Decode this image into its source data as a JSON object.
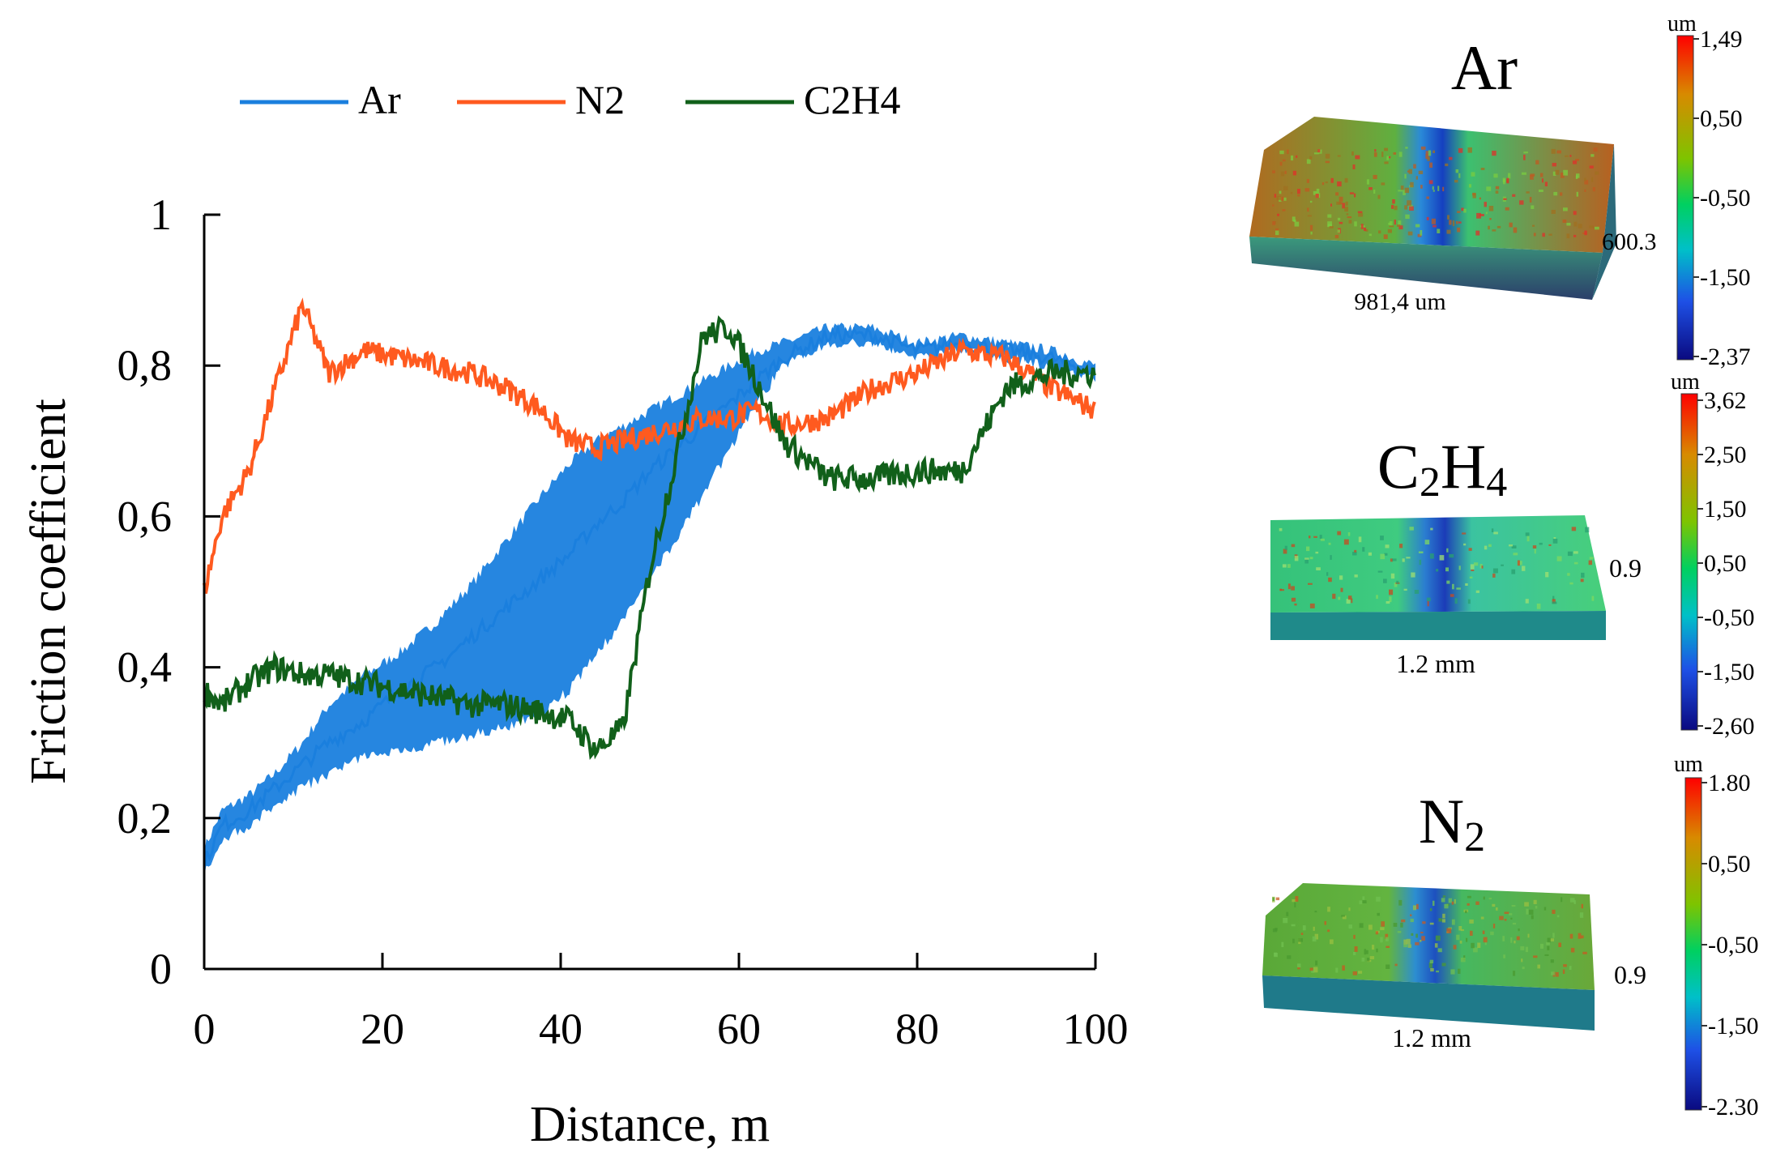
{
  "chart_data": {
    "type": "line",
    "xlabel": "Distance, m",
    "ylabel": "Friction coefficient",
    "xlim": [
      0,
      100
    ],
    "ylim": [
      0,
      1
    ],
    "grid": false,
    "legend_position": "top",
    "x_ticks": [
      "0",
      "20",
      "40",
      "60",
      "80",
      "100"
    ],
    "y_ticks": [
      "0",
      "0,2",
      "0,4",
      "0,6",
      "0,8",
      "1"
    ],
    "x": [
      0,
      2,
      5,
      8,
      11,
      14,
      18,
      22,
      26,
      30,
      34,
      38,
      41,
      44,
      47,
      50,
      53,
      56,
      59,
      62,
      65,
      70,
      75,
      80,
      85,
      90,
      95,
      100
    ],
    "series": [
      {
        "name": "Ar",
        "color": "#1a7fde",
        "values": [
          0.14,
          0.19,
          0.21,
          0.24,
          0.27,
          0.3,
          0.33,
          0.37,
          0.4,
          0.44,
          0.48,
          0.52,
          0.55,
          0.59,
          0.62,
          0.66,
          0.69,
          0.72,
          0.75,
          0.78,
          0.81,
          0.84,
          0.84,
          0.82,
          0.83,
          0.82,
          0.81,
          0.79
        ],
        "band_low": [
          0.13,
          0.17,
          0.19,
          0.22,
          0.24,
          0.26,
          0.28,
          0.29,
          0.3,
          0.31,
          0.32,
          0.34,
          0.37,
          0.42,
          0.46,
          0.52,
          0.57,
          0.63,
          0.69,
          0.75,
          0.8,
          0.83,
          0.83,
          0.81,
          0.82,
          0.81,
          0.8,
          0.78
        ],
        "band_high": [
          0.16,
          0.21,
          0.23,
          0.26,
          0.3,
          0.35,
          0.39,
          0.42,
          0.46,
          0.51,
          0.57,
          0.63,
          0.67,
          0.7,
          0.72,
          0.74,
          0.76,
          0.78,
          0.8,
          0.82,
          0.83,
          0.85,
          0.85,
          0.83,
          0.84,
          0.83,
          0.82,
          0.8
        ]
      },
      {
        "name": "N2",
        "color": "#ff5a1f",
        "values": [
          0.5,
          0.6,
          0.66,
          0.77,
          0.88,
          0.79,
          0.82,
          0.81,
          0.8,
          0.79,
          0.77,
          0.74,
          0.7,
          0.69,
          0.7,
          0.71,
          0.72,
          0.73,
          0.73,
          0.74,
          0.72,
          0.73,
          0.77,
          0.79,
          0.82,
          0.81,
          0.77,
          0.74
        ]
      },
      {
        "name": "C2H4",
        "color": "#11601a",
        "values": [
          0.37,
          0.35,
          0.38,
          0.4,
          0.39,
          0.39,
          0.38,
          0.37,
          0.36,
          0.35,
          0.35,
          0.34,
          0.33,
          0.29,
          0.32,
          0.53,
          0.68,
          0.84,
          0.85,
          0.78,
          0.7,
          0.65,
          0.65,
          0.66,
          0.66,
          0.77,
          0.79,
          0.79
        ]
      }
    ]
  },
  "panels": [
    {
      "title": "Ar",
      "unit": "um",
      "width_label": "981,4 um",
      "depth_label": "600.3",
      "scale_ticks": [
        "1,49",
        "0,50",
        "-0,50",
        "-1,50",
        "-2,37"
      ]
    },
    {
      "title": "C2H4",
      "unit": "um",
      "width_label": "1.2 mm",
      "depth_label": "0.9",
      "scale_ticks": [
        "3,62",
        "2,50",
        "1,50",
        "0,50",
        "-0,50",
        "-1,50",
        "-2,60"
      ]
    },
    {
      "title": "N2",
      "unit": "um",
      "width_label": "1.2 mm",
      "depth_label": "0.9",
      "scale_ticks": [
        "1.80",
        "0,50",
        "-0,50",
        "-1,50",
        "-2.30"
      ]
    }
  ]
}
